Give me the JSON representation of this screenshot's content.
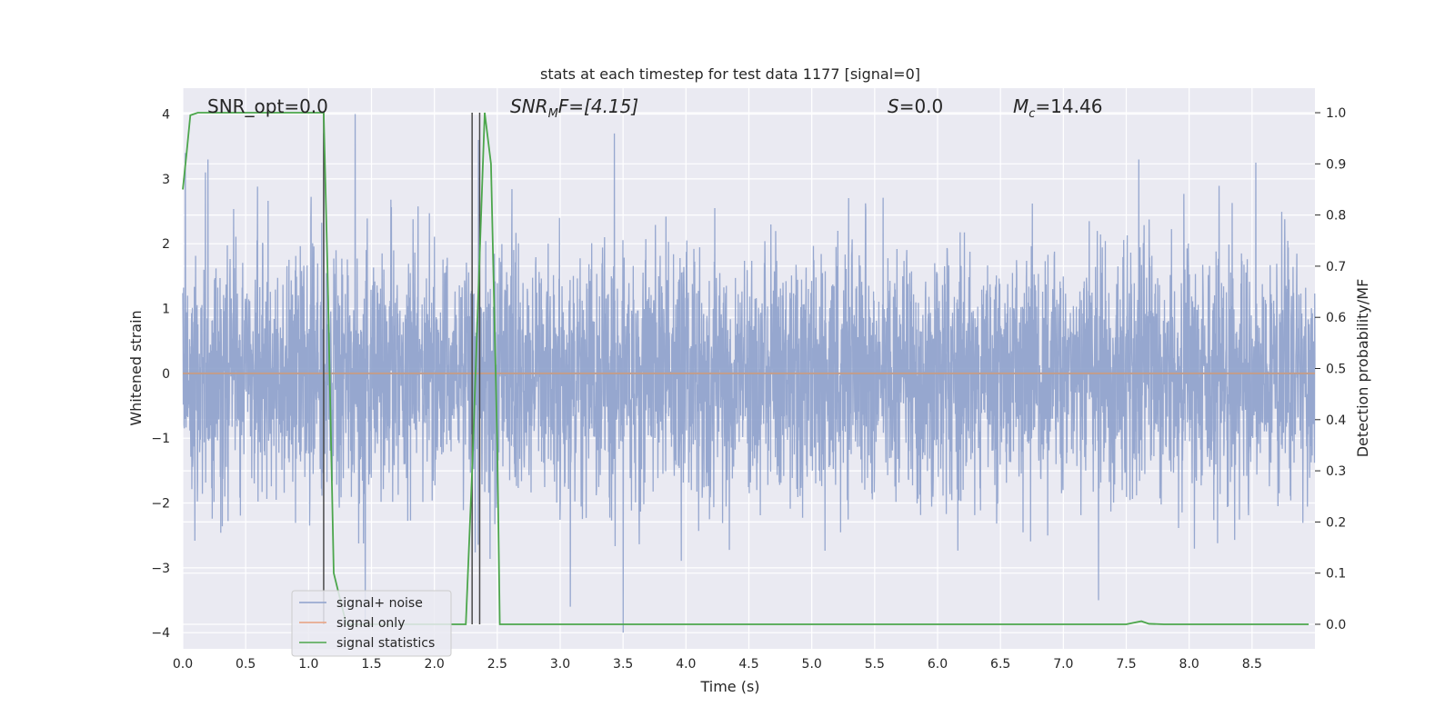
{
  "chart_data": {
    "type": "line",
    "title": "stats at each timestep for test data 1177 [signal=0]",
    "xlabel": "Time (s)",
    "ylabel": "Whitened strain",
    "y2label": "Detection probability/MF",
    "xlim": [
      0.0,
      9.0
    ],
    "ylim": [
      -4.25,
      4.4
    ],
    "y2lim": [
      -0.048,
      1.048
    ],
    "xticks": [
      "0.0",
      "0.5",
      "1.0",
      "1.5",
      "2.0",
      "2.5",
      "3.0",
      "3.5",
      "4.0",
      "4.5",
      "5.0",
      "5.5",
      "6.0",
      "6.5",
      "7.0",
      "7.5",
      "8.0",
      "8.5"
    ],
    "xtick_values": [
      0.0,
      0.5,
      1.0,
      1.5,
      2.0,
      2.5,
      3.0,
      3.5,
      4.0,
      4.5,
      5.0,
      5.5,
      6.0,
      6.5,
      7.0,
      7.5,
      8.0,
      8.5
    ],
    "yticks": [
      "4",
      "3",
      "2",
      "1",
      "0",
      "−1",
      "−2",
      "−3",
      "−4"
    ],
    "ytick_values": [
      4,
      3,
      2,
      1,
      0,
      -1,
      -2,
      -3,
      -4
    ],
    "y2ticks": [
      "1.0",
      "0.9",
      "0.8",
      "0.7",
      "0.6",
      "0.5",
      "0.4",
      "0.3",
      "0.2",
      "0.1",
      "0.0"
    ],
    "y2tick_values": [
      1.0,
      0.9,
      0.8,
      0.7,
      0.6,
      0.5,
      0.4,
      0.3,
      0.2,
      0.1,
      0.0
    ],
    "grid": true,
    "legend_position": "lower-left",
    "annotations": {
      "snr_opt": "SNR_opt=0.0",
      "snr_mf_prefix": "SNR",
      "snr_mf_sub": "M",
      "snr_mf_suffix": "F=[4.15]",
      "s_var": "S",
      "s_value": "=0.0",
      "mc_var": "M",
      "mc_sub": "c",
      "mc_value": "=14.46"
    },
    "series": [
      {
        "name": "signal+ noise",
        "axis": "left",
        "color": "#8da0cb",
        "style": "noise",
        "description_values": {
          "x_range": [
            0.0,
            9.0
          ],
          "typical_envelope": [
            -1.6,
            1.6
          ],
          "peak_values": [
            [
              0.02,
              3.4
            ],
            [
              0.18,
              3.1
            ],
            [
              0.2,
              3.3
            ],
            [
              1.12,
              3.7
            ],
            [
              1.37,
              4.0
            ],
            [
              1.45,
              -3.8
            ],
            [
              2.35,
              3.6
            ],
            [
              3.43,
              3.7
            ],
            [
              3.5,
              -4.0
            ],
            [
              3.08,
              -3.6
            ],
            [
              7.28,
              -3.5
            ],
            [
              7.6,
              3.3
            ],
            [
              8.53,
              3.25
            ]
          ]
        }
      },
      {
        "name": "signal only",
        "axis": "left",
        "color": "#e8a07e",
        "x": [
          0.0,
          9.0
        ],
        "values": [
          0.0,
          0.0
        ]
      },
      {
        "name": "signal statistics",
        "axis": "right",
        "color": "#4ca64c",
        "x": [
          0.0,
          0.03,
          0.06,
          0.12,
          0.2,
          0.4,
          0.6,
          0.8,
          1.0,
          1.12,
          1.15,
          1.2,
          1.3,
          1.4,
          1.6,
          2.0,
          2.25,
          2.3,
          2.4,
          2.45,
          2.5,
          2.52,
          2.6,
          3.0,
          4.0,
          5.0,
          6.0,
          7.0,
          7.5,
          7.56,
          7.62,
          7.68,
          7.8,
          8.5,
          8.95
        ],
        "values": [
          0.85,
          0.92,
          0.995,
          1.0,
          1.0,
          1.0,
          1.0,
          1.0,
          1.0,
          1.0,
          0.7,
          0.1,
          0.0,
          0.0,
          0.0,
          0.0,
          0.0,
          0.3,
          1.0,
          0.9,
          0.35,
          0.0,
          0.0,
          0.0,
          0.0,
          0.0,
          0.0,
          0.0,
          0.0,
          0.003,
          0.006,
          0.001,
          0.0,
          0.0,
          0.0
        ]
      }
    ],
    "vertical_markers": [
      1.12,
      2.3,
      2.36
    ]
  },
  "colors": {
    "plot_bg": "#eaeaf2",
    "grid": "#ffffff",
    "marker_line": "#4a4a4a",
    "zero_line": "#999999"
  }
}
